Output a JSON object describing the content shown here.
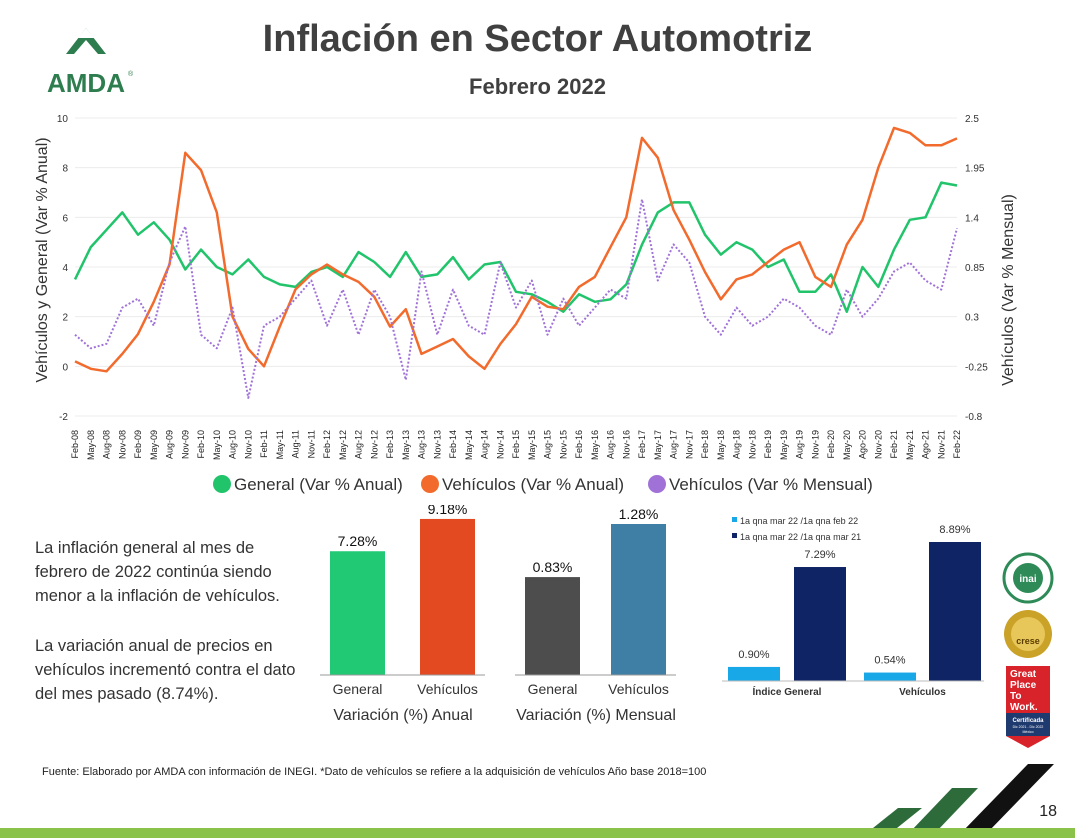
{
  "header": {
    "title": "Inflación en Sector Automotriz",
    "subtitle": "Febrero 2022",
    "logo_text": "AMDA",
    "logo_registered": "®"
  },
  "colors": {
    "general": "#21c46b",
    "vehiculos_anual": "#f26b2d",
    "vehiculos_mensual": "#a072d8",
    "bar_general_anual": "#22c975",
    "bar_vehiculos_anual": "#e44a22",
    "bar_general_mensual": "#4d4d4d",
    "bar_vehiculos_mensual": "#3f7ea5",
    "qna_feb": "#18a8e8",
    "qna_mar21": "#0f2464",
    "footer_bar": "#8bc34a",
    "stripe_green": "#2e6b3a",
    "stripe_black": "#111111"
  },
  "chart_data": [
    {
      "type": "line",
      "title": "",
      "ylabel": "Vehículos y General (Var % Anual)",
      "y2label": "Vehículos (Var % Mensual)",
      "ylim": [
        -2,
        10
      ],
      "y2lim": [
        -0.8,
        2.5
      ],
      "yticks": [
        "10",
        "8",
        "6",
        "4",
        "2",
        "0",
        "-2"
      ],
      "y2ticks": [
        "2.5",
        "1.95",
        "1.4",
        "0.85",
        "0.3",
        "-0.25",
        "-0.8"
      ],
      "xlabels": [
        "Feb-08",
        "May-08",
        "Aug-08",
        "Nov-08",
        "Feb-09",
        "May-09",
        "Aug-09",
        "Nov-09",
        "Feb-10",
        "May-10",
        "Aug-10",
        "Nov-10",
        "Feb-11",
        "May-11",
        "Aug-11",
        "Nov-11",
        "Feb-12",
        "May-12",
        "Aug-12",
        "Nov-12",
        "Feb-13",
        "May-13",
        "Aug-13",
        "Nov-13",
        "Feb-14",
        "May-14",
        "Aug-14",
        "Nov-14",
        "Feb-15",
        "May-15",
        "Aug-15",
        "Nov-15",
        "Feb-16",
        "May-16",
        "Aug-16",
        "Nov-16",
        "Feb-17",
        "May-17",
        "Aug-17",
        "Nov-17",
        "Feb-18",
        "May-18",
        "Aug-18",
        "Nov-18",
        "Feb-19",
        "May-19",
        "Aug-19",
        "Nov-19",
        "Feb-20",
        "May-20",
        "Ago-20",
        "Nov-20",
        "Feb-21",
        "May-21",
        "Ago-21",
        "Nov-21",
        "Feb-22"
      ],
      "legend_position": "bottom",
      "series": [
        {
          "name": "General (Var % Anual)",
          "axis": "left",
          "values": [
            3.5,
            4.8,
            5.5,
            6.2,
            5.3,
            5.8,
            5.1,
            3.9,
            4.7,
            4.0,
            3.7,
            4.3,
            3.6,
            3.3,
            3.2,
            3.8,
            4.0,
            3.6,
            4.6,
            4.2,
            3.6,
            4.6,
            3.6,
            3.7,
            4.4,
            3.5,
            4.1,
            4.2,
            3.0,
            2.9,
            2.6,
            2.2,
            2.9,
            2.6,
            2.7,
            3.3,
            4.9,
            6.2,
            6.6,
            6.6,
            5.3,
            4.5,
            5.0,
            4.7,
            4.0,
            4.3,
            3.0,
            3.0,
            3.7,
            2.2,
            4.0,
            3.2,
            4.7,
            5.9,
            6.0,
            7.4,
            7.28
          ]
        },
        {
          "name": "Vehículos (Var % Anual)",
          "axis": "left",
          "values": [
            0.2,
            -0.1,
            -0.2,
            0.5,
            1.3,
            2.6,
            4.1,
            8.6,
            7.9,
            6.2,
            2.0,
            0.7,
            0.0,
            1.6,
            3.1,
            3.7,
            4.1,
            3.7,
            3.4,
            2.8,
            1.6,
            2.3,
            0.5,
            0.8,
            1.1,
            0.4,
            -0.1,
            0.9,
            1.7,
            2.8,
            2.4,
            2.3,
            3.2,
            3.6,
            4.8,
            6.0,
            9.2,
            8.4,
            6.3,
            5.1,
            3.8,
            2.7,
            3.5,
            3.7,
            4.2,
            4.7,
            5.0,
            3.6,
            3.2,
            4.9,
            5.9,
            8.0,
            9.6,
            9.4,
            8.9,
            8.9,
            9.18
          ]
        },
        {
          "name": "Vehículos (Var % Mensual)",
          "axis": "right",
          "values": [
            0.1,
            -0.05,
            0.0,
            0.4,
            0.5,
            0.2,
            0.9,
            1.3,
            0.1,
            -0.05,
            0.4,
            -0.6,
            0.2,
            0.3,
            0.5,
            0.7,
            0.2,
            0.6,
            0.1,
            0.6,
            0.3,
            -0.4,
            0.8,
            0.1,
            0.6,
            0.2,
            0.1,
            0.9,
            0.4,
            0.7,
            0.1,
            0.5,
            0.2,
            0.4,
            0.6,
            0.5,
            1.6,
            0.7,
            1.1,
            0.9,
            0.3,
            0.1,
            0.4,
            0.2,
            0.3,
            0.5,
            0.4,
            0.2,
            0.1,
            0.6,
            0.3,
            0.5,
            0.8,
            0.9,
            0.7,
            0.6,
            1.28
          ]
        }
      ]
    },
    {
      "type": "bar",
      "xlabel": "Variación (%) Anual",
      "categories": [
        "General",
        "Vehículos"
      ],
      "values": [
        7.28,
        9.18
      ],
      "labels": [
        "7.28%",
        "9.18%"
      ]
    },
    {
      "type": "bar",
      "xlabel": "Variación (%) Mensual",
      "categories": [
        "General",
        "Vehículos"
      ],
      "values": [
        0.83,
        1.28
      ],
      "labels": [
        "0.83%",
        "1.28%"
      ]
    },
    {
      "type": "bar",
      "categories": [
        "Índice General",
        "Vehículos"
      ],
      "legend_position": "top-left",
      "series": [
        {
          "name": "1a qna mar 22 /1a qna feb 22",
          "values": [
            0.9,
            0.54
          ],
          "labels": [
            "0.90%",
            "0.54%"
          ]
        },
        {
          "name": "1a qna mar 22 /1a qna mar 21",
          "values": [
            7.29,
            8.89
          ],
          "labels": [
            "7.29%",
            "8.89%"
          ]
        }
      ]
    }
  ],
  "text": {
    "para1": "La inflación general al mes de febrero de 2022 continúa siendo menor a la inflación de vehículos.",
    "para2": "La variación anual de precios en vehículos incrementó contra el dato del mes pasado (8.74%).",
    "source": "Fuente: Elaborado por AMDA con información de INEGI. *Dato de vehículos se refiere a la adquisición de vehículos Año base 2018=100",
    "page_number": "18"
  },
  "badges": {
    "inai": "inai",
    "crese": "crese",
    "gptw": [
      "Great",
      "Place",
      "To",
      "Work."
    ],
    "gptw_cert": "Certificada",
    "gptw_period": "Dic 2021 - Dic 2022",
    "gptw_country": "México"
  }
}
